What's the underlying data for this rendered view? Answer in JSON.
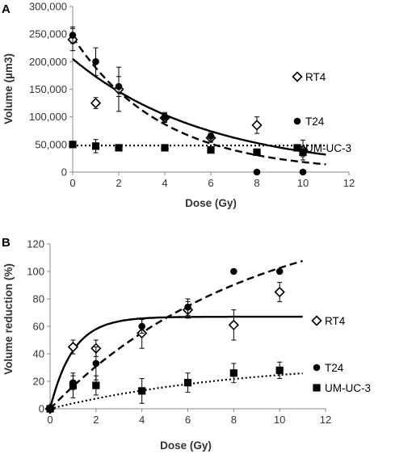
{
  "chart_data": [
    {
      "panel_label": "A",
      "type": "scatter",
      "xlabel": "Dose (Gy)",
      "ylabel": "Volume (µm3)",
      "xlim": [
        0,
        12
      ],
      "ylim": [
        0,
        300000
      ],
      "xticks": [
        "0",
        "2",
        "4",
        "6",
        "8",
        "10",
        "12"
      ],
      "yticks": [
        "0",
        "50,000",
        "100,000",
        "150,000",
        "200,000",
        "250,000",
        "300,000"
      ],
      "legend_position": "right",
      "series": [
        {
          "name": "RT4",
          "marker": "diamond-open",
          "line": "solid",
          "points": [
            {
              "x": 0,
              "y": 240000,
              "err": 20000
            },
            {
              "x": 1,
              "y": 125000,
              "err": 10000
            },
            {
              "x": 2,
              "y": 150000,
              "err": 40000
            },
            {
              "x": 4,
              "y": 98000,
              "err": 8000
            },
            {
              "x": 6,
              "y": 62000,
              "err": 8000
            },
            {
              "x": 8,
              "y": 85000,
              "err": 15000
            },
            {
              "x": 10,
              "y": 40000,
              "err": 18000
            }
          ],
          "fit": {
            "model": "exponential",
            "a": 205000,
            "k": 0.17
          }
        },
        {
          "name": "T24",
          "marker": "circle-filled",
          "line": "dashed",
          "points": [
            {
              "x": 0,
              "y": 248000,
              "err": 15000
            },
            {
              "x": 1,
              "y": 200000,
              "err": 25000
            },
            {
              "x": 2,
              "y": 155000,
              "err": 18000
            },
            {
              "x": 4,
              "y": 100000,
              "err": 8000
            },
            {
              "x": 6,
              "y": 65000,
              "err": 8000
            },
            {
              "x": 8,
              "y": 0,
              "err": 0
            },
            {
              "x": 10,
              "y": 0,
              "err": 0
            }
          ],
          "fit": {
            "model": "exponential",
            "a": 245000,
            "k": 0.26
          }
        },
        {
          "name": "UM-UC-3",
          "marker": "square-filled",
          "line": "dotted",
          "points": [
            {
              "x": 0,
              "y": 50000,
              "err": 5000
            },
            {
              "x": 1,
              "y": 47000,
              "err": 12000
            },
            {
              "x": 2,
              "y": 44000,
              "err": 3000
            },
            {
              "x": 4,
              "y": 44000,
              "err": 3000
            },
            {
              "x": 6,
              "y": 40000,
              "err": 5000
            },
            {
              "x": 8,
              "y": 36000,
              "err": 3000
            },
            {
              "x": 10,
              "y": 36000,
              "err": 8000
            }
          ],
          "fit": {
            "model": "constant",
            "a": 48000
          }
        }
      ]
    },
    {
      "panel_label": "B",
      "type": "scatter",
      "xlabel": "Dose (Gy)",
      "ylabel": "Volume reduction (%)",
      "xlim": [
        0,
        12
      ],
      "ylim": [
        0,
        120
      ],
      "xticks": [
        "0",
        "2",
        "4",
        "6",
        "8",
        "10",
        "12"
      ],
      "yticks": [
        "0",
        "20",
        "40",
        "60",
        "80",
        "100",
        "120"
      ],
      "legend_position": "right",
      "series": [
        {
          "name": "RT4",
          "marker": "diamond-open",
          "line": "solid",
          "points": [
            {
              "x": 0,
              "y": 0,
              "err": 0
            },
            {
              "x": 1,
              "y": 45,
              "err": 5
            },
            {
              "x": 2,
              "y": 44,
              "err": 6
            },
            {
              "x": 4,
              "y": 55,
              "err": 11
            },
            {
              "x": 6,
              "y": 72,
              "err": 6
            },
            {
              "x": 8,
              "y": 61,
              "err": 11
            },
            {
              "x": 10,
              "y": 85,
              "err": 7
            }
          ],
          "fit": {
            "model": "saturation",
            "a": 67,
            "k": 1.0
          }
        },
        {
          "name": "T24",
          "marker": "circle-filled",
          "line": "dashed",
          "points": [
            {
              "x": 0,
              "y": 0,
              "err": 0
            },
            {
              "x": 1,
              "y": 19,
              "err": 5
            },
            {
              "x": 2,
              "y": 33,
              "err": 12
            },
            {
              "x": 4,
              "y": 60,
              "err": 5
            },
            {
              "x": 6,
              "y": 74,
              "err": 6
            },
            {
              "x": 8,
              "y": 100,
              "err": 0
            },
            {
              "x": 10,
              "y": 100,
              "err": 0
            }
          ],
          "fit": {
            "model": "saturation",
            "a": 150,
            "k": 0.115
          }
        },
        {
          "name": "UM-UC-3",
          "marker": "square-filled",
          "line": "dotted",
          "points": [
            {
              "x": 0,
              "y": 0,
              "err": 0
            },
            {
              "x": 1,
              "y": 17,
              "err": 9
            },
            {
              "x": 2,
              "y": 17,
              "err": 7
            },
            {
              "x": 4,
              "y": 13,
              "err": 9
            },
            {
              "x": 6,
              "y": 19,
              "err": 7
            },
            {
              "x": 8,
              "y": 26,
              "err": 7
            },
            {
              "x": 10,
              "y": 28,
              "err": 6
            }
          ],
          "fit": {
            "model": "saturation",
            "a": 36,
            "k": 0.115
          }
        }
      ]
    }
  ]
}
